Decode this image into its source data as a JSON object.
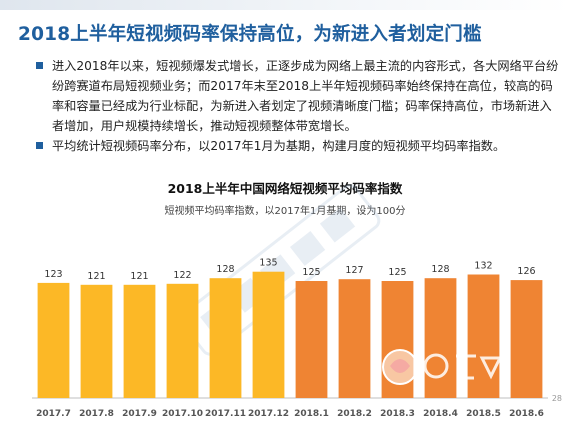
{
  "page": {
    "title": "2018上半年短视频码率保持高位，为新进入者划定门槛",
    "bullets": [
      "进入2018年以来，短视频爆发式增长，正逐步成为网络上最主流的内容形式，各大网络平台纷纷跨赛道布局短视频业务；而2017年末至2018上半年短视频码率始终保持在高位，较高的码率和容量已经成为行业标配，为新进入者划定了视频清晰度门槛；码率保持高位，市场新进入者增加，用户规模持续增长，推动短视频整体带宽增长。",
      "平均统计短视频码率分布，以2017年1月为基期，构建月度的短视频平均码率指数。"
    ],
    "page_number": "28",
    "colors": {
      "title": "#1f5f9e",
      "bar_2017": "#fcb826",
      "bar_2018": "#ef8433",
      "bullet": "#1f5f9e"
    }
  },
  "chart_data": {
    "type": "bar",
    "title": "2018上半年中国网络短视频平均码率指数",
    "subtitle": "短视频平均码率指数，以2017年1月基期，设为100分",
    "categories": [
      "2017.7",
      "2017.8",
      "2017.9",
      "2017.10",
      "2017.11",
      "2017.12",
      "2018.1",
      "2018.2",
      "2018.3",
      "2018.4",
      "2018.5",
      "2018.6"
    ],
    "values": [
      123,
      121,
      121,
      122,
      128,
      135,
      125,
      127,
      125,
      128,
      132,
      126
    ],
    "ylim": [
      0,
      140
    ],
    "grid": false,
    "legend": "none"
  }
}
